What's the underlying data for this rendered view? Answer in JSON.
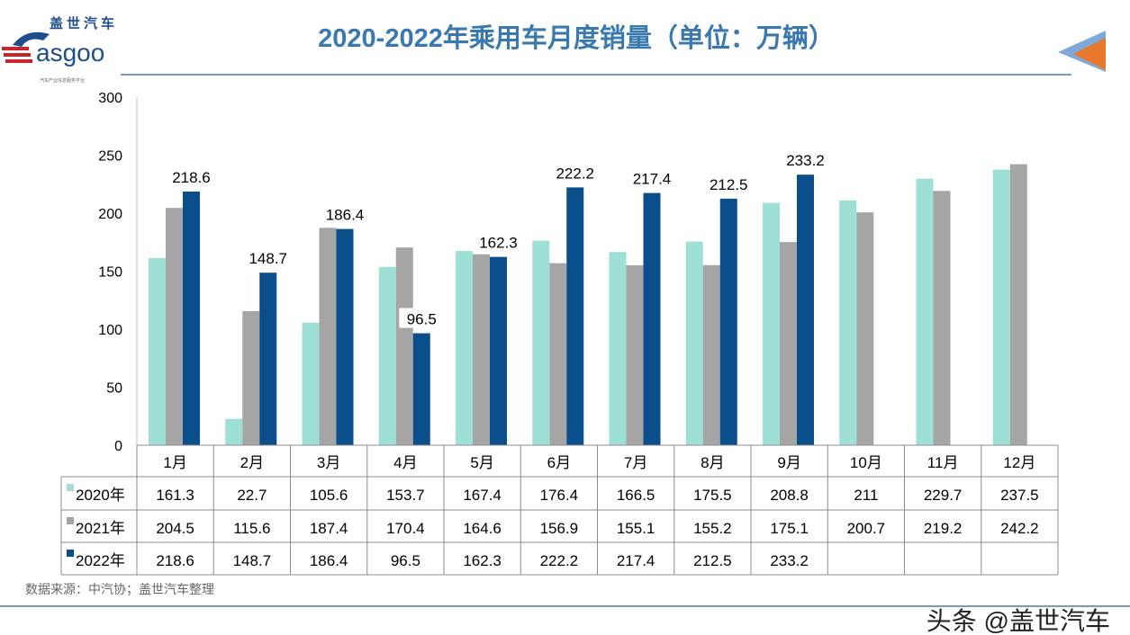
{
  "header": {
    "title": "2020-2022年乘用车月度销量（单位：万辆）",
    "logo_cn": "盖世汽车",
    "logo_en": "Gasgoo",
    "logo_tagline": "汽车产业信息服务平台"
  },
  "footer": {
    "source": "数据来源：中汽协；盖世汽车整理",
    "watermark": "头条 @盖世汽车"
  },
  "colors": {
    "s2020": "#9ee0d6",
    "s2021": "#a5a5a5",
    "s2022": "#0a4f8c",
    "title": "#3a78b0"
  },
  "chart_data": {
    "type": "bar",
    "title": "2020-2022年乘用车月度销量（单位：万辆）",
    "categories": [
      "1月",
      "2月",
      "3月",
      "4月",
      "5月",
      "6月",
      "7月",
      "8月",
      "9月",
      "10月",
      "11月",
      "12月"
    ],
    "ylim": [
      0,
      300
    ],
    "yticks": [
      "0",
      "50",
      "100",
      "150",
      "200",
      "250",
      "300"
    ],
    "grid": false,
    "legend": "data-table",
    "series": [
      {
        "name": "2020年",
        "values": [
          161.3,
          22.7,
          105.6,
          153.7,
          167.4,
          176.4,
          166.5,
          175.5,
          208.8,
          211,
          229.7,
          237.5
        ]
      },
      {
        "name": "2021年",
        "values": [
          204.5,
          115.6,
          187.4,
          170.4,
          164.6,
          156.9,
          155.1,
          155.2,
          175.1,
          200.7,
          219.2,
          242.2
        ]
      },
      {
        "name": "2022年",
        "values": [
          218.6,
          148.7,
          186.4,
          96.5,
          162.3,
          222.2,
          217.4,
          212.5,
          233.2,
          null,
          null,
          null
        ]
      }
    ],
    "data_labels_series": "2022年"
  }
}
